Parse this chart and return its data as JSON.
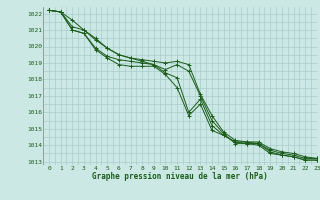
{
  "title": "Graphe pression niveau de la mer (hPa)",
  "background_color": "#cce8e4",
  "grid_color": "#aacccc",
  "line_color": "#1a5c1a",
  "marker": "+",
  "xlim": [
    -0.5,
    23
  ],
  "ylim": [
    1012.8,
    1022.4
  ],
  "yticks": [
    1013,
    1014,
    1015,
    1016,
    1017,
    1018,
    1019,
    1020,
    1021,
    1022
  ],
  "xticks": [
    0,
    1,
    2,
    3,
    4,
    5,
    6,
    7,
    8,
    9,
    10,
    11,
    12,
    13,
    14,
    15,
    16,
    17,
    18,
    19,
    20,
    21,
    22,
    23
  ],
  "series": [
    [
      1022.2,
      1022.1,
      1021.6,
      1021.0,
      1020.4,
      1019.9,
      1019.5,
      1019.3,
      1019.2,
      1019.1,
      1019.0,
      1019.1,
      1018.9,
      1017.1,
      1015.8,
      1014.8,
      1014.3,
      1014.2,
      1014.2,
      1013.8,
      1013.6,
      1013.5,
      1013.3,
      1013.2
    ],
    [
      1022.2,
      1022.1,
      1021.2,
      1021.0,
      1020.5,
      1019.9,
      1019.5,
      1019.3,
      1019.1,
      1018.9,
      1018.6,
      1018.9,
      1018.5,
      1017.0,
      1015.5,
      1014.7,
      1014.1,
      1014.1,
      1014.1,
      1013.7,
      1013.5,
      1013.4,
      1013.2,
      1013.2
    ],
    [
      1022.2,
      1022.1,
      1021.0,
      1020.8,
      1019.9,
      1019.4,
      1019.2,
      1019.1,
      1019.0,
      1018.9,
      1018.4,
      1018.1,
      1016.0,
      1016.8,
      1015.2,
      1014.6,
      1014.2,
      1014.2,
      1014.1,
      1013.6,
      1013.4,
      1013.3,
      1013.1,
      1013.1
    ],
    [
      1022.2,
      1022.1,
      1021.0,
      1020.8,
      1019.8,
      1019.3,
      1018.9,
      1018.8,
      1018.8,
      1018.8,
      1018.3,
      1017.5,
      1015.8,
      1016.5,
      1014.9,
      1014.6,
      1014.2,
      1014.1,
      1014.0,
      1013.5,
      1013.4,
      1013.3,
      1013.1,
      1013.1
    ]
  ]
}
